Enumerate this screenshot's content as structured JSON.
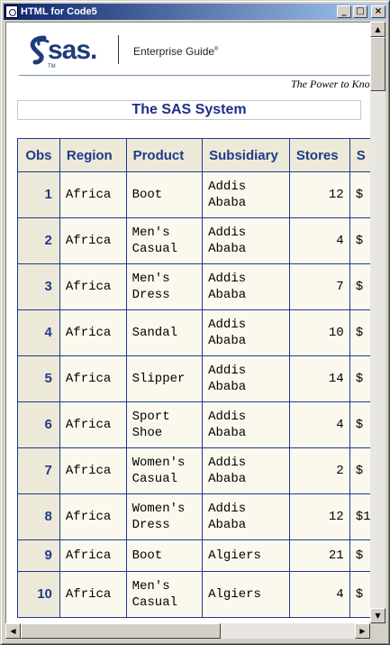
{
  "window": {
    "title": "HTML for Code5",
    "minimize_label": "_",
    "maximize_label": "□",
    "close_label": "×"
  },
  "banner": {
    "logo_text": "sas.",
    "logo_tm": "TM",
    "product_name": "Enterprise Guide",
    "product_mark": "®",
    "tagline": "The Power to Know"
  },
  "system_title": "The SAS System",
  "table": {
    "headers": [
      "Obs",
      "Region",
      "Product",
      "Subsidiary",
      "Stores",
      "S"
    ],
    "rows": [
      {
        "obs": "1",
        "region": "Africa",
        "product": [
          "Boot"
        ],
        "subsidiary": [
          "Addis",
          "Ababa"
        ],
        "stores": "12",
        "sales": "$"
      },
      {
        "obs": "2",
        "region": "Africa",
        "product": [
          "Men's",
          "Casual"
        ],
        "subsidiary": [
          "Addis",
          "Ababa"
        ],
        "stores": "4",
        "sales": "$"
      },
      {
        "obs": "3",
        "region": "Africa",
        "product": [
          "Men's",
          "Dress"
        ],
        "subsidiary": [
          "Addis",
          "Ababa"
        ],
        "stores": "7",
        "sales": "$"
      },
      {
        "obs": "4",
        "region": "Africa",
        "product": [
          "Sandal"
        ],
        "subsidiary": [
          "Addis",
          "Ababa"
        ],
        "stores": "10",
        "sales": "$"
      },
      {
        "obs": "5",
        "region": "Africa",
        "product": [
          "Slipper"
        ],
        "subsidiary": [
          "Addis",
          "Ababa"
        ],
        "stores": "14",
        "sales": "$"
      },
      {
        "obs": "6",
        "region": "Africa",
        "product": [
          "Sport",
          "Shoe"
        ],
        "subsidiary": [
          "Addis",
          "Ababa"
        ],
        "stores": "4",
        "sales": "$"
      },
      {
        "obs": "7",
        "region": "Africa",
        "product": [
          "Women's",
          "Casual"
        ],
        "subsidiary": [
          "Addis",
          "Ababa"
        ],
        "stores": "2",
        "sales": "$"
      },
      {
        "obs": "8",
        "region": "Africa",
        "product": [
          "Women's",
          "Dress"
        ],
        "subsidiary": [
          "Addis",
          "Ababa"
        ],
        "stores": "12",
        "sales": "$1"
      },
      {
        "obs": "9",
        "region": "Africa",
        "product": [
          "Boot"
        ],
        "subsidiary": [
          "Algiers"
        ],
        "stores": "21",
        "sales": "$"
      },
      {
        "obs": "10",
        "region": "Africa",
        "product": [
          "Men's",
          "Casual"
        ],
        "subsidiary": [
          "Algiers"
        ],
        "stores": "4",
        "sales": "$"
      }
    ]
  }
}
